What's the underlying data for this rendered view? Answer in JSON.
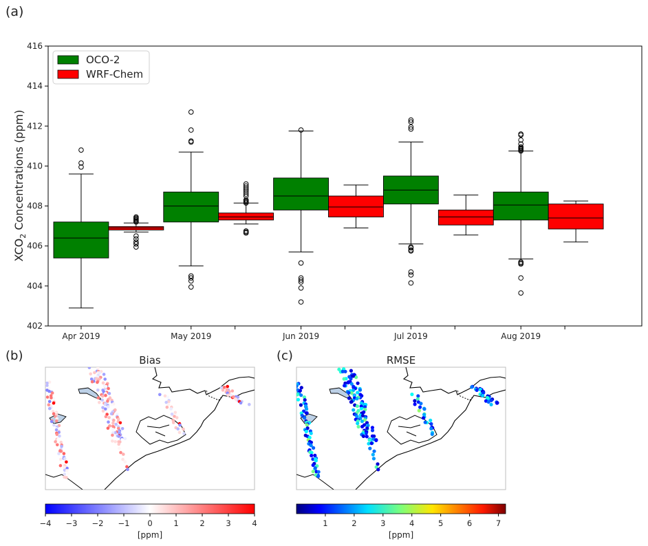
{
  "panels": {
    "a_label": "(a)",
    "b_label": "(b)",
    "c_label": "(c)"
  },
  "chart_data": [
    {
      "type": "boxplot",
      "ylabel_prefix": "XCO",
      "ylabel_sub": "2",
      "ylabel_suffix": " Concentrations (ppm)",
      "ylim": [
        402,
        416
      ],
      "yticks": [
        402,
        404,
        406,
        408,
        410,
        412,
        414,
        416
      ],
      "categories": [
        "Apr 2019",
        "May 2019",
        "Jun 2019",
        "Jul 2019",
        "Aug 2019"
      ],
      "legend_position": "top-left",
      "grid": false,
      "series": [
        {
          "name": "OCO-2",
          "color": "#008000",
          "boxes": [
            {
              "whislo": 402.9,
              "q1": 405.4,
              "med": 406.4,
              "q3": 407.2,
              "whishi": 409.6,
              "fliers": [
                410.8,
                410.15,
                409.95
              ]
            },
            {
              "whislo": 405.0,
              "q1": 407.2,
              "med": 408.0,
              "q3": 408.7,
              "whishi": 410.7,
              "fliers": [
                412.7,
                411.8,
                411.25,
                411.2,
                404.5,
                404.4,
                404.25,
                403.95
              ]
            },
            {
              "whislo": 405.7,
              "q1": 407.8,
              "med": 408.5,
              "q3": 409.4,
              "whishi": 411.75,
              "fliers": [
                411.8,
                405.15,
                404.4,
                404.3,
                404.2,
                403.9,
                403.2
              ]
            },
            {
              "whislo": 406.1,
              "q1": 408.1,
              "med": 408.8,
              "q3": 409.5,
              "whishi": 411.2,
              "fliers": [
                412.3,
                412.2,
                411.95,
                411.85,
                405.95,
                405.9,
                405.8,
                405.75,
                404.7,
                404.55,
                404.15
              ]
            },
            {
              "whislo": 405.35,
              "q1": 407.3,
              "med": 408.05,
              "q3": 408.7,
              "whishi": 410.75,
              "fliers": [
                411.6,
                411.55,
                411.3,
                411.1,
                410.95,
                410.9,
                410.85,
                410.8,
                410.75,
                405.2,
                405.15,
                405.1,
                404.4,
                403.65
              ]
            }
          ]
        },
        {
          "name": "WRF-Chem",
          "color": "#ff0000",
          "boxes": [
            {
              "whislo": 406.7,
              "q1": 406.8,
              "med": 406.9,
              "q3": 406.97,
              "whishi": 407.15,
              "fliers": [
                407.45,
                407.4,
                407.35,
                407.3,
                407.25,
                407.2,
                406.5,
                406.35,
                406.2,
                406.1,
                405.95
              ]
            },
            {
              "whislo": 407.1,
              "q1": 407.3,
              "med": 407.45,
              "q3": 407.65,
              "whishi": 408.15,
              "fliers": [
                409.1,
                409.0,
                408.9,
                408.8,
                408.7,
                408.6,
                408.5,
                408.3,
                408.25,
                408.2,
                408.15,
                406.75,
                406.7,
                406.65
              ]
            },
            {
              "whislo": 406.9,
              "q1": 407.45,
              "med": 407.95,
              "q3": 408.5,
              "whishi": 409.05,
              "fliers": []
            },
            {
              "whislo": 406.55,
              "q1": 407.05,
              "med": 407.45,
              "q3": 407.8,
              "whishi": 408.55,
              "fliers": []
            },
            {
              "whislo": 406.2,
              "q1": 406.85,
              "med": 407.4,
              "q3": 408.1,
              "whishi": 408.25,
              "fliers": []
            }
          ]
        }
      ]
    },
    {
      "type": "heatmap",
      "title": "Bias",
      "colorbar_label": "[ppm]",
      "colormap": "bwr",
      "vlim": [
        -4,
        4
      ],
      "colorbar_ticks": [
        "−4",
        "−3",
        "−2",
        "−1",
        "0",
        "1",
        "2",
        "3",
        "4"
      ],
      "colorbar_tick_values": [
        -4,
        -3,
        -2,
        -1,
        0,
        1,
        2,
        3,
        4
      ]
    },
    {
      "type": "heatmap",
      "title": "RMSE",
      "colorbar_label": "[ppm]",
      "colormap": "jet",
      "vlim": [
        0,
        7.25
      ],
      "colorbar_ticks": [
        "1",
        "2",
        "3",
        "4",
        "5",
        "6",
        "7"
      ],
      "colorbar_tick_values": [
        1,
        2,
        3,
        4,
        5,
        6,
        7
      ]
    }
  ]
}
